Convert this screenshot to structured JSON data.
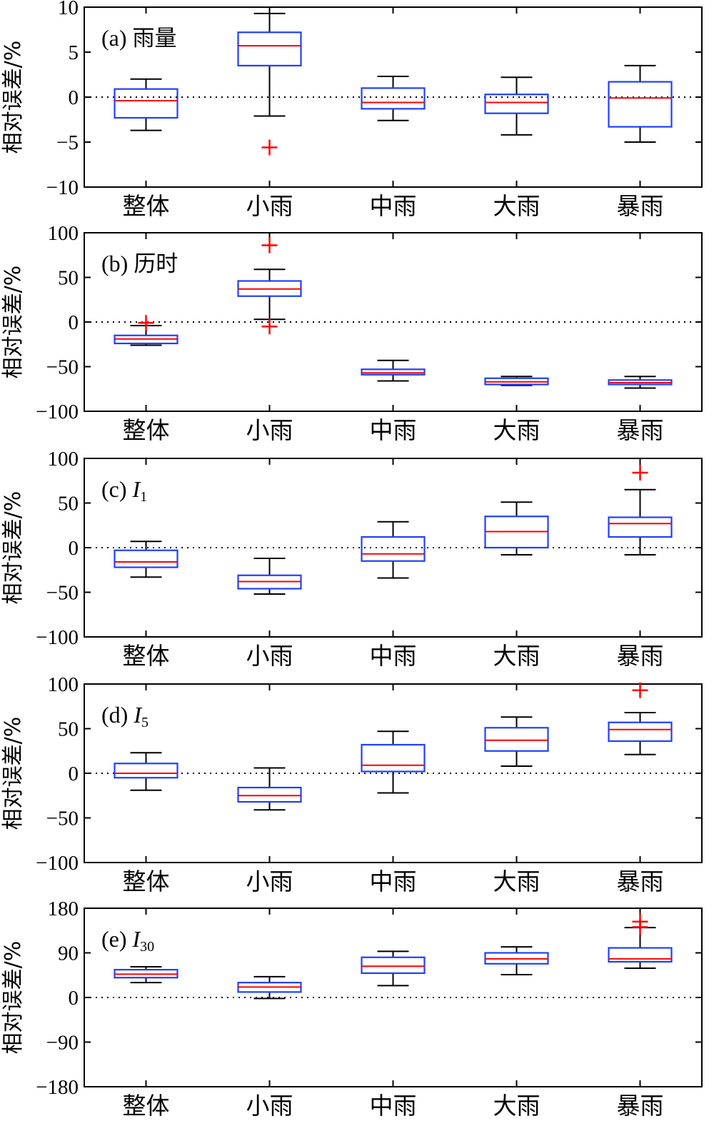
{
  "chart_data": [
    {
      "type": "boxplot",
      "panel_label": "(a)",
      "title": "雨量",
      "title_italic": false,
      "ylabel": "相对误差/%",
      "ylim": [
        -10,
        10
      ],
      "yticks": [
        10,
        5,
        0,
        -5,
        -10
      ],
      "ytick_labels": [
        "10",
        "5",
        "0",
        "−5",
        "−10"
      ],
      "categories": [
        "整体",
        "小雨",
        "中雨",
        "大雨",
        "暴雨"
      ],
      "zero_line": true,
      "boxes": [
        {
          "whisker_low": -3.7,
          "q1": -2.3,
          "median": -0.4,
          "q3": 0.9,
          "whisker_high": 2.0,
          "outliers": []
        },
        {
          "whisker_low": -2.1,
          "q1": 3.5,
          "median": 5.7,
          "q3": 7.2,
          "whisker_high": 9.3,
          "outliers": [
            -5.6
          ]
        },
        {
          "whisker_low": -2.6,
          "q1": -1.3,
          "median": -0.6,
          "q3": 1.0,
          "whisker_high": 2.3,
          "outliers": []
        },
        {
          "whisker_low": -4.2,
          "q1": -1.8,
          "median": -0.6,
          "q3": 0.3,
          "whisker_high": 2.2,
          "outliers": []
        },
        {
          "whisker_low": -5.0,
          "q1": -3.3,
          "median": -0.1,
          "q3": 1.7,
          "whisker_high": 3.5,
          "outliers": []
        }
      ]
    },
    {
      "type": "boxplot",
      "panel_label": "(b)",
      "title": "历时",
      "title_italic": false,
      "ylabel": "相对误差/%",
      "ylim": [
        -100,
        100
      ],
      "yticks": [
        100,
        50,
        0,
        -50,
        -100
      ],
      "ytick_labels": [
        "100",
        "50",
        "0",
        "−50",
        "−100"
      ],
      "categories": [
        "整体",
        "小雨",
        "中雨",
        "大雨",
        "暴雨"
      ],
      "zero_line": true,
      "boxes": [
        {
          "whisker_low": -26,
          "q1": -24,
          "median": -19,
          "q3": -15,
          "whisker_high": -4,
          "outliers": [
            -1
          ]
        },
        {
          "whisker_low": 3,
          "q1": 29,
          "median": 37,
          "q3": 46,
          "whisker_high": 59,
          "outliers": [
            86,
            -5
          ]
        },
        {
          "whisker_low": -66,
          "q1": -59,
          "median": -57,
          "q3": -53,
          "whisker_high": -43,
          "outliers": []
        },
        {
          "whisker_low": -71,
          "q1": -70,
          "median": -67,
          "q3": -63,
          "whisker_high": -61,
          "outliers": []
        },
        {
          "whisker_low": -74,
          "q1": -70,
          "median": -68,
          "q3": -65,
          "whisker_high": -61,
          "outliers": []
        }
      ]
    },
    {
      "type": "boxplot",
      "panel_label": "(c)",
      "title": "I",
      "title_subscript": "1",
      "title_italic": true,
      "ylabel": "相对误差/%",
      "ylim": [
        -100,
        100
      ],
      "yticks": [
        100,
        50,
        0,
        -50,
        -100
      ],
      "ytick_labels": [
        "100",
        "50",
        "0",
        "−50",
        "−100"
      ],
      "categories": [
        "整体",
        "小雨",
        "中雨",
        "大雨",
        "暴雨"
      ],
      "zero_line": true,
      "boxes": [
        {
          "whisker_low": -33,
          "q1": -22,
          "median": -16,
          "q3": -3,
          "whisker_high": 7,
          "outliers": []
        },
        {
          "whisker_low": -52,
          "q1": -46,
          "median": -38,
          "q3": -31,
          "whisker_high": -12,
          "outliers": []
        },
        {
          "whisker_low": -34,
          "q1": -15,
          "median": -7,
          "q3": 12,
          "whisker_high": 29,
          "outliers": []
        },
        {
          "whisker_low": -8,
          "q1": 0,
          "median": 18,
          "q3": 35,
          "whisker_high": 51,
          "outliers": []
        },
        {
          "whisker_low": -8,
          "q1": 12,
          "median": 27,
          "q3": 34,
          "whisker_high": 65,
          "outliers": [
            84
          ]
        }
      ]
    },
    {
      "type": "boxplot",
      "panel_label": "(d)",
      "title": "I",
      "title_subscript": "5",
      "title_italic": true,
      "ylabel": "相对误差/%",
      "ylim": [
        -100,
        100
      ],
      "yticks": [
        100,
        50,
        0,
        -50,
        -100
      ],
      "ytick_labels": [
        "100",
        "50",
        "0",
        "−50",
        "−100"
      ],
      "categories": [
        "整体",
        "小雨",
        "中雨",
        "大雨",
        "暴雨"
      ],
      "zero_line": true,
      "boxes": [
        {
          "whisker_low": -19,
          "q1": -5,
          "median": 0,
          "q3": 11,
          "whisker_high": 23,
          "outliers": []
        },
        {
          "whisker_low": -41,
          "q1": -32,
          "median": -25,
          "q3": -16,
          "whisker_high": 6,
          "outliers": []
        },
        {
          "whisker_low": -22,
          "q1": 2,
          "median": 9,
          "q3": 32,
          "whisker_high": 47,
          "outliers": []
        },
        {
          "whisker_low": 8,
          "q1": 25,
          "median": 37,
          "q3": 51,
          "whisker_high": 63,
          "outliers": []
        },
        {
          "whisker_low": 21,
          "q1": 36,
          "median": 49,
          "q3": 57,
          "whisker_high": 68,
          "outliers": [
            93
          ]
        }
      ]
    },
    {
      "type": "boxplot",
      "panel_label": "(e)",
      "title": "I",
      "title_subscript": "30",
      "title_italic": true,
      "ylabel": "相对误差/%",
      "ylim": [
        -180,
        180
      ],
      "yticks": [
        180,
        90,
        0,
        -90,
        -180
      ],
      "ytick_labels": [
        "180",
        "90",
        "0",
        "−90",
        "−180"
      ],
      "categories": [
        "整体",
        "小雨",
        "中雨",
        "大雨",
        "暴雨"
      ],
      "zero_line": true,
      "boxes": [
        {
          "whisker_low": 30,
          "q1": 40,
          "median": 47,
          "q3": 56,
          "whisker_high": 62,
          "outliers": []
        },
        {
          "whisker_low": -2,
          "q1": 11,
          "median": 21,
          "q3": 30,
          "whisker_high": 42,
          "outliers": []
        },
        {
          "whisker_low": 24,
          "q1": 49,
          "median": 63,
          "q3": 81,
          "whisker_high": 93,
          "outliers": []
        },
        {
          "whisker_low": 46,
          "q1": 68,
          "median": 78,
          "q3": 90,
          "whisker_high": 102,
          "outliers": []
        },
        {
          "whisker_low": 59,
          "q1": 72,
          "median": 78,
          "q3": 100,
          "whisker_high": 141,
          "outliers": [
            142,
            153
          ]
        }
      ]
    }
  ],
  "colors": {
    "box": "#1f3fff",
    "median": "#ff0000",
    "whisker": "#000000",
    "outlier": "#ff0000",
    "axis": "#000000"
  }
}
